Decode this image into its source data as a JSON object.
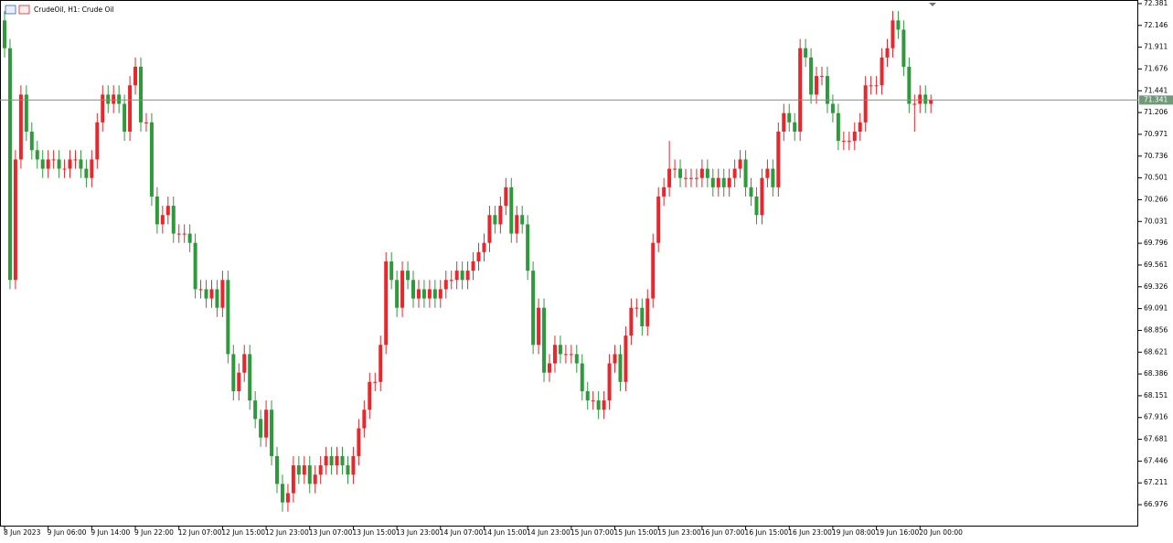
{
  "chart_data": {
    "type": "candlestick",
    "title": "CrudeOil, H1:  Crude Oil",
    "up_color": "#e8262b",
    "down_color": "#2f9a3c",
    "current_price": 71.341,
    "ylim": [
      66.74,
      72.42
    ],
    "yticks": [
      72.381,
      72.146,
      71.911,
      71.676,
      71.441,
      71.206,
      70.971,
      70.736,
      70.501,
      70.266,
      70.031,
      69.796,
      69.561,
      69.326,
      69.091,
      68.856,
      68.621,
      68.386,
      68.151,
      67.916,
      67.681,
      67.446,
      67.211,
      66.976
    ],
    "categories": [
      "8 Jun 2023",
      null,
      null,
      null,
      null,
      null,
      null,
      null,
      "9 Jun 06:00",
      null,
      null,
      null,
      null,
      null,
      null,
      null,
      "9 Jun 14:00",
      null,
      null,
      null,
      null,
      null,
      null,
      null,
      "9 Jun 22:00",
      null,
      null,
      null,
      null,
      null,
      null,
      null,
      "12 Jun 07:00",
      null,
      null,
      null,
      null,
      null,
      null,
      null,
      "12 Jun 15:00",
      null,
      null,
      null,
      null,
      null,
      null,
      null,
      "12 Jun 23:00",
      null,
      null,
      null,
      null,
      null,
      null,
      null,
      "13 Jun 07:00",
      null,
      null,
      null,
      null,
      null,
      null,
      null,
      "13 Jun 15:00",
      null,
      null,
      null,
      null,
      null,
      null,
      null,
      "13 Jun 23:00",
      null,
      null,
      null,
      null,
      null,
      null,
      null,
      "14 Jun 07:00",
      null,
      null,
      null,
      null,
      null,
      null,
      null,
      "14 Jun 15:00",
      null,
      null,
      null,
      null,
      null,
      null,
      null,
      "14 Jun 23:00",
      null,
      null,
      null,
      null,
      null,
      null,
      null,
      "15 Jun 07:00",
      null,
      null,
      null,
      null,
      null,
      null,
      null,
      "15 Jun 15:00",
      null,
      null,
      null,
      null,
      null,
      null,
      null,
      "15 Jun 23:00",
      null,
      null,
      null,
      null,
      null,
      null,
      null,
      "16 Jun 07:00",
      null,
      null,
      null,
      null,
      null,
      null,
      null,
      "16 Jun 15:00",
      null,
      null,
      null,
      null,
      null,
      null,
      null,
      "16 Jun 23:00",
      null,
      null,
      null,
      null,
      null,
      null,
      null,
      "19 Jun 08:00",
      null,
      null,
      null,
      null,
      null,
      null,
      null,
      "19 Jun 16:00",
      null,
      null,
      null,
      null,
      null,
      null,
      null,
      "20 Jun 00:00",
      null,
      null
    ],
    "open": [
      72.2,
      71.9,
      69.4,
      70.7,
      71.4,
      71.0,
      70.8,
      70.7,
      70.6,
      70.7,
      70.7,
      70.6,
      70.6,
      70.7,
      70.7,
      70.6,
      70.5,
      70.7,
      71.1,
      71.4,
      71.3,
      71.4,
      71.3,
      71.0,
      71.5,
      71.7,
      71.1,
      71.1,
      70.3,
      70.0,
      70.1,
      70.2,
      69.9,
      69.9,
      69.9,
      69.8,
      69.3,
      69.3,
      69.2,
      69.3,
      69.1,
      69.4,
      68.6,
      68.2,
      68.4,
      68.6,
      68.1,
      67.9,
      67.7,
      68.0,
      67.5,
      67.2,
      67.0,
      67.1,
      67.4,
      67.3,
      67.4,
      67.2,
      67.3,
      67.4,
      67.5,
      67.4,
      67.5,
      67.4,
      67.3,
      67.5,
      67.8,
      68.0,
      68.3,
      68.3,
      68.7,
      69.6,
      69.4,
      69.1,
      69.5,
      69.4,
      69.2,
      69.3,
      69.2,
      69.3,
      69.2,
      69.3,
      69.4,
      69.4,
      69.5,
      69.4,
      69.5,
      69.6,
      69.7,
      69.8,
      70.1,
      70.0,
      70.2,
      70.4,
      69.9,
      70.1,
      70.0,
      69.5,
      68.7,
      69.1,
      68.4,
      68.5,
      68.7,
      68.6,
      68.6,
      68.6,
      68.5,
      68.2,
      68.1,
      68.1,
      68.0,
      68.1,
      68.5,
      68.6,
      68.3,
      68.8,
      69.1,
      69.1,
      68.9,
      69.2,
      69.8,
      70.3,
      70.4,
      70.6,
      70.6,
      70.5,
      70.5,
      70.5,
      70.5,
      70.6,
      70.5,
      70.4,
      70.5,
      70.4,
      70.5,
      70.6,
      70.7,
      70.4,
      70.3,
      70.1,
      70.5,
      70.6,
      70.4,
      71.0,
      71.2,
      71.1,
      71.0,
      71.9,
      71.8,
      71.4,
      71.6,
      71.6,
      71.3,
      71.2,
      70.9,
      70.9,
      70.9,
      71.0,
      71.1,
      71.5,
      71.5,
      71.5,
      71.8,
      71.9,
      72.2,
      72.1,
      71.7,
      71.3,
      71.3,
      71.4,
      71.3
    ],
    "high": [
      72.3,
      72.0,
      70.8,
      71.5,
      71.5,
      71.1,
      70.9,
      70.8,
      70.8,
      70.8,
      70.8,
      70.7,
      70.8,
      70.8,
      70.8,
      70.7,
      70.8,
      71.2,
      71.5,
      71.5,
      71.5,
      71.5,
      71.4,
      71.6,
      71.8,
      71.8,
      71.2,
      71.2,
      70.4,
      70.2,
      70.3,
      70.3,
      70.0,
      70.0,
      70.0,
      69.9,
      69.4,
      69.4,
      69.4,
      69.4,
      69.5,
      69.5,
      68.7,
      68.5,
      68.7,
      68.7,
      68.2,
      68.0,
      68.1,
      68.1,
      67.6,
      67.3,
      67.2,
      67.5,
      67.5,
      67.5,
      67.5,
      67.4,
      67.5,
      67.6,
      67.6,
      67.6,
      67.6,
      67.5,
      67.6,
      67.9,
      68.1,
      68.4,
      68.4,
      68.8,
      69.7,
      69.7,
      69.5,
      69.6,
      69.6,
      69.5,
      69.4,
      69.4,
      69.4,
      69.4,
      69.4,
      69.5,
      69.5,
      69.6,
      69.6,
      69.6,
      69.7,
      69.8,
      69.9,
      70.2,
      70.2,
      70.3,
      70.5,
      70.5,
      70.2,
      70.2,
      70.1,
      69.6,
      69.2,
      69.2,
      68.6,
      68.8,
      68.8,
      68.7,
      68.7,
      68.7,
      68.6,
      68.3,
      68.2,
      68.2,
      68.2,
      68.6,
      68.7,
      68.7,
      68.9,
      69.2,
      69.2,
      69.2,
      69.3,
      69.9,
      70.4,
      70.5,
      70.9,
      70.7,
      70.7,
      70.6,
      70.6,
      70.6,
      70.7,
      70.7,
      70.6,
      70.6,
      70.6,
      70.6,
      70.7,
      70.8,
      70.8,
      70.5,
      70.4,
      70.6,
      70.7,
      70.7,
      71.1,
      71.3,
      71.3,
      71.2,
      72.0,
      72.0,
      71.9,
      71.7,
      71.7,
      71.7,
      71.4,
      71.3,
      71.0,
      71.0,
      71.1,
      71.2,
      71.6,
      71.6,
      71.6,
      71.9,
      72.0,
      72.3,
      72.3,
      72.2,
      71.8,
      71.4,
      71.5,
      71.5,
      71.4
    ],
    "low": [
      71.8,
      69.3,
      69.3,
      70.6,
      70.9,
      70.7,
      70.6,
      70.5,
      70.5,
      70.6,
      70.5,
      70.5,
      70.5,
      70.6,
      70.5,
      70.4,
      70.4,
      70.6,
      71.0,
      71.2,
      71.2,
      71.2,
      70.9,
      70.9,
      71.4,
      71.0,
      71.0,
      70.2,
      69.9,
      69.9,
      70.0,
      69.8,
      69.8,
      69.8,
      69.7,
      69.2,
      69.2,
      69.1,
      69.1,
      69.0,
      69.0,
      68.5,
      68.1,
      68.1,
      68.3,
      68.0,
      67.8,
      67.6,
      67.6,
      67.4,
      67.1,
      66.9,
      66.9,
      67.0,
      67.2,
      67.2,
      67.1,
      67.1,
      67.2,
      67.3,
      67.3,
      67.3,
      67.3,
      67.2,
      67.2,
      67.4,
      67.7,
      67.9,
      68.2,
      68.2,
      68.6,
      69.3,
      69.0,
      69.0,
      69.3,
      69.1,
      69.1,
      69.1,
      69.1,
      69.1,
      69.1,
      69.2,
      69.3,
      69.3,
      69.3,
      69.3,
      69.4,
      69.5,
      69.6,
      69.7,
      69.9,
      69.9,
      70.1,
      69.8,
      69.8,
      69.9,
      69.4,
      68.6,
      68.6,
      68.3,
      68.3,
      68.4,
      68.5,
      68.5,
      68.5,
      68.4,
      68.1,
      68.0,
      68.0,
      67.9,
      67.9,
      68.0,
      68.4,
      68.2,
      68.2,
      68.7,
      69.0,
      68.8,
      68.8,
      69.1,
      69.7,
      70.2,
      70.3,
      70.5,
      70.4,
      70.4,
      70.4,
      70.4,
      70.4,
      70.4,
      70.3,
      70.3,
      70.3,
      70.3,
      70.4,
      70.5,
      70.3,
      70.2,
      70.0,
      70.0,
      70.4,
      70.3,
      70.3,
      70.9,
      71.0,
      70.9,
      70.9,
      71.7,
      71.3,
      71.3,
      71.5,
      71.2,
      71.1,
      70.8,
      70.8,
      70.8,
      70.8,
      70.9,
      71.0,
      71.4,
      71.4,
      71.4,
      71.7,
      71.8,
      72.0,
      71.6,
      71.2,
      71.0,
      71.2,
      71.2,
      71.2
    ],
    "close": [
      71.9,
      69.4,
      70.7,
      71.4,
      71.0,
      70.8,
      70.7,
      70.6,
      70.7,
      70.7,
      70.6,
      70.6,
      70.7,
      70.7,
      70.6,
      70.5,
      70.7,
      71.1,
      71.4,
      71.3,
      71.4,
      71.3,
      71.0,
      71.5,
      71.7,
      71.1,
      71.1,
      70.3,
      70.0,
      70.1,
      70.2,
      69.9,
      69.9,
      69.9,
      69.8,
      69.3,
      69.3,
      69.2,
      69.3,
      69.1,
      69.4,
      68.6,
      68.2,
      68.4,
      68.6,
      68.1,
      67.9,
      67.7,
      68.0,
      67.5,
      67.2,
      67.0,
      67.1,
      67.4,
      67.3,
      67.4,
      67.2,
      67.3,
      67.4,
      67.5,
      67.4,
      67.5,
      67.4,
      67.3,
      67.5,
      67.8,
      68.0,
      68.3,
      68.3,
      68.7,
      69.6,
      69.4,
      69.1,
      69.5,
      69.4,
      69.2,
      69.3,
      69.2,
      69.3,
      69.2,
      69.3,
      69.4,
      69.4,
      69.5,
      69.4,
      69.5,
      69.6,
      69.7,
      69.8,
      70.1,
      70.0,
      70.2,
      70.4,
      69.9,
      70.1,
      70.0,
      69.5,
      68.7,
      69.1,
      68.4,
      68.5,
      68.7,
      68.6,
      68.6,
      68.6,
      68.5,
      68.2,
      68.1,
      68.1,
      68.0,
      68.1,
      68.5,
      68.6,
      68.3,
      68.8,
      69.1,
      69.1,
      68.9,
      69.2,
      69.8,
      70.3,
      70.4,
      70.6,
      70.6,
      70.5,
      70.5,
      70.5,
      70.5,
      70.6,
      70.5,
      70.4,
      70.5,
      70.4,
      70.5,
      70.6,
      70.7,
      70.4,
      70.3,
      70.1,
      70.5,
      70.6,
      70.4,
      71.0,
      71.2,
      71.1,
      71.0,
      71.9,
      71.8,
      71.4,
      71.6,
      71.6,
      71.3,
      71.2,
      70.9,
      70.9,
      70.9,
      71.0,
      71.1,
      71.5,
      71.5,
      71.5,
      71.8,
      71.9,
      72.2,
      72.1,
      71.7,
      71.3,
      71.3,
      71.4,
      71.3,
      71.34
    ]
  }
}
